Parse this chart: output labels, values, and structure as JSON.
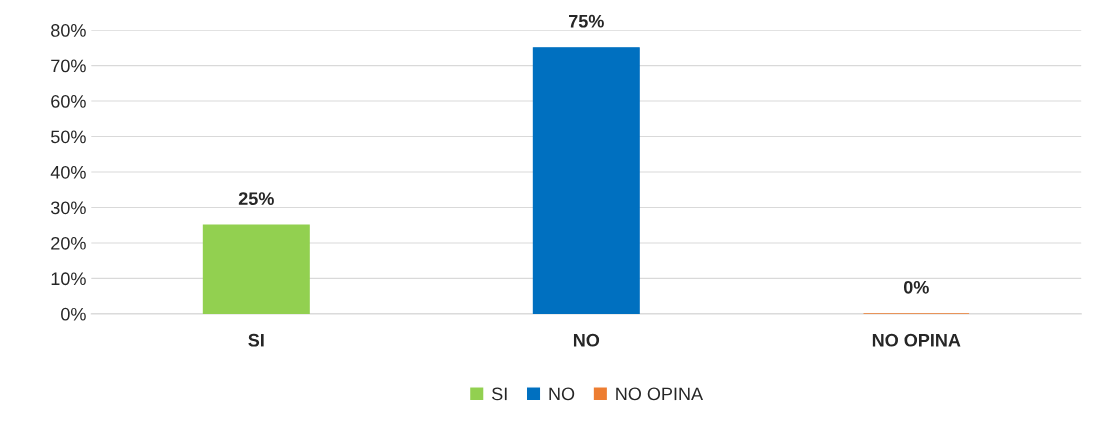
{
  "chart_data": {
    "type": "bar",
    "categories": [
      "SI",
      "NO",
      "NO OPINA"
    ],
    "series": [
      {
        "name": "SI",
        "color": "#92d050",
        "values": [
          25,
          null,
          null
        ],
        "value_labels": [
          "25%",
          null,
          null
        ]
      },
      {
        "name": "NO",
        "color": "#0070c0",
        "values": [
          null,
          75,
          null
        ],
        "value_labels": [
          null,
          "75%",
          null
        ]
      },
      {
        "name": "NO OPINA",
        "color": "#ed7d31",
        "values": [
          null,
          null,
          0
        ],
        "value_labels": [
          null,
          null,
          "0%"
        ]
      }
    ],
    "ylim": [
      0,
      80
    ],
    "yticks": [
      {
        "value": 0,
        "label": "0%"
      },
      {
        "value": 10,
        "label": "10%"
      },
      {
        "value": 20,
        "label": "20%"
      },
      {
        "value": 30,
        "label": "30%"
      },
      {
        "value": 40,
        "label": "40%"
      },
      {
        "value": 50,
        "label": "50%"
      },
      {
        "value": 60,
        "label": "60%"
      },
      {
        "value": 70,
        "label": "70%"
      },
      {
        "value": 80,
        "label": "80%"
      }
    ],
    "grid": "y",
    "legend": "bottom"
  }
}
